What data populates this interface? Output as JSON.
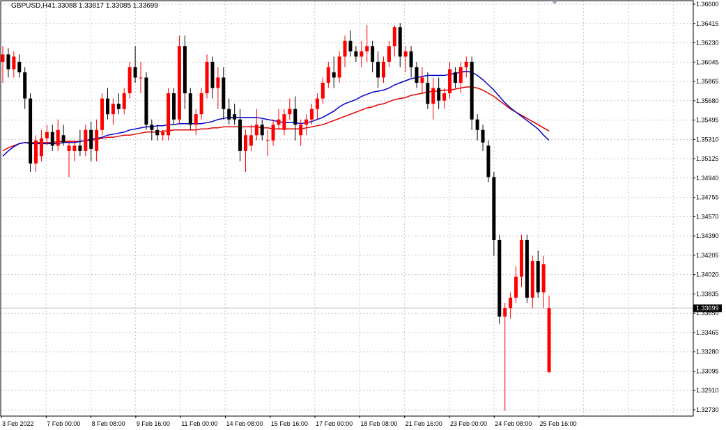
{
  "header": {
    "symbol": "GBPUSD,H4",
    "ohlc": "1.33088 1.33817 1.33085 1.33699"
  },
  "price_tag": "1.33699",
  "colors": {
    "bull": "#ff0000",
    "bear": "#000000",
    "ma_fast": "#0000cc",
    "ma_slow": "#e00000",
    "grid": "#c8c8c8",
    "frame": "#000000",
    "bid_line": "#c0c0c0"
  },
  "chart_data": {
    "type": "candlestick",
    "y_ticks": [
      "1.36600",
      "1.36415",
      "1.36230",
      "1.36045",
      "1.35865",
      "1.35680",
      "1.35495",
      "1.35310",
      "1.35125",
      "1.34940",
      "1.34755",
      "1.34570",
      "1.34390",
      "1.34205",
      "1.34020",
      "1.33835",
      "1.33650",
      "1.33465",
      "1.33280",
      "1.33095",
      "1.32910",
      "1.32730"
    ],
    "x_ticks": [
      "3 Feb 2022",
      "7 Feb 00:00",
      "8 Feb 08:00",
      "9 Feb 16:00",
      "11 Feb 00:00",
      "14 Feb 08:00",
      "15 Feb 16:00",
      "17 Feb 00:00",
      "18 Feb 08:00",
      "21 Feb 16:00",
      "23 Feb 00:00",
      "24 Feb 08:00",
      "25 Feb 16:00"
    ],
    "ylim": [
      1.3265,
      1.3662
    ],
    "candles": [
      [
        1.3605,
        1.362,
        1.3585,
        1.3612
      ],
      [
        1.3612,
        1.3618,
        1.359,
        1.3598
      ],
      [
        1.3598,
        1.3615,
        1.359,
        1.361
      ],
      [
        1.3605,
        1.3612,
        1.359,
        1.3595
      ],
      [
        1.3595,
        1.36,
        1.356,
        1.357
      ],
      [
        1.357,
        1.3575,
        1.35,
        1.3508
      ],
      [
        1.3508,
        1.3535,
        1.35,
        1.353
      ],
      [
        1.3515,
        1.354,
        1.351,
        1.3532
      ],
      [
        1.3532,
        1.3545,
        1.3525,
        1.3538
      ],
      [
        1.3538,
        1.3545,
        1.352,
        1.3525
      ],
      [
        1.3525,
        1.355,
        1.352,
        1.354
      ],
      [
        1.3535,
        1.3545,
        1.3525,
        1.3528
      ],
      [
        1.352,
        1.353,
        1.3495,
        1.3525
      ],
      [
        1.352,
        1.353,
        1.351,
        1.3525
      ],
      [
        1.3525,
        1.354,
        1.3515,
        1.352
      ],
      [
        1.352,
        1.3545,
        1.3515,
        1.354
      ],
      [
        1.354,
        1.3548,
        1.351,
        1.3522
      ],
      [
        1.352,
        1.355,
        1.351,
        1.354
      ],
      [
        1.354,
        1.3575,
        1.3535,
        1.357
      ],
      [
        1.357,
        1.358,
        1.355,
        1.3555
      ],
      [
        1.3555,
        1.357,
        1.3545,
        1.3565
      ],
      [
        1.3565,
        1.3575,
        1.3555,
        1.356
      ],
      [
        1.356,
        1.358,
        1.3555,
        1.3575
      ],
      [
        1.3575,
        1.3605,
        1.357,
        1.36
      ],
      [
        1.36,
        1.362,
        1.3585,
        1.359
      ],
      [
        1.359,
        1.3605,
        1.3575,
        1.359
      ],
      [
        1.359,
        1.3595,
        1.354,
        1.3545
      ],
      [
        1.3545,
        1.355,
        1.353,
        1.354
      ],
      [
        1.354,
        1.3545,
        1.353,
        1.3535
      ],
      [
        1.3535,
        1.354,
        1.353,
        1.3538
      ],
      [
        1.3535,
        1.358,
        1.353,
        1.3575
      ],
      [
        1.3575,
        1.358,
        1.3545,
        1.355
      ],
      [
        1.355,
        1.363,
        1.3545,
        1.362
      ],
      [
        1.362,
        1.363,
        1.356,
        1.3575
      ],
      [
        1.3575,
        1.358,
        1.354,
        1.3545
      ],
      [
        1.3545,
        1.356,
        1.3535,
        1.3555
      ],
      [
        1.3555,
        1.358,
        1.355,
        1.3575
      ],
      [
        1.3575,
        1.3612,
        1.357,
        1.3605
      ],
      [
        1.3605,
        1.361,
        1.357,
        1.358
      ],
      [
        1.358,
        1.36,
        1.356,
        1.359
      ],
      [
        1.359,
        1.36,
        1.355,
        1.356
      ],
      [
        1.356,
        1.357,
        1.3545,
        1.355
      ],
      [
        1.3555,
        1.3565,
        1.3545,
        1.355
      ],
      [
        1.355,
        1.356,
        1.351,
        1.352
      ],
      [
        1.352,
        1.354,
        1.35,
        1.3535
      ],
      [
        1.3525,
        1.3545,
        1.352,
        1.3535
      ],
      [
        1.3535,
        1.356,
        1.353,
        1.3545
      ],
      [
        1.3545,
        1.355,
        1.353,
        1.3535
      ],
      [
        1.353,
        1.354,
        1.3515,
        1.353
      ],
      [
        1.353,
        1.355,
        1.3525,
        1.3545
      ],
      [
        1.3545,
        1.356,
        1.354,
        1.355
      ],
      [
        1.354,
        1.356,
        1.3535,
        1.3555
      ],
      [
        1.3555,
        1.357,
        1.355,
        1.356
      ],
      [
        1.356,
        1.3572,
        1.353,
        1.3545
      ],
      [
        1.3535,
        1.355,
        1.3525,
        1.3545
      ],
      [
        1.3545,
        1.3555,
        1.3535,
        1.355
      ],
      [
        1.355,
        1.3565,
        1.3545,
        1.356
      ],
      [
        1.356,
        1.3575,
        1.355,
        1.357
      ],
      [
        1.357,
        1.359,
        1.3565,
        1.3585
      ],
      [
        1.3585,
        1.3605,
        1.358,
        1.36
      ],
      [
        1.3595,
        1.361,
        1.358,
        1.359
      ],
      [
        1.359,
        1.3615,
        1.3585,
        1.361
      ],
      [
        1.361,
        1.363,
        1.36,
        1.3625
      ],
      [
        1.3625,
        1.3635,
        1.361,
        1.3615
      ],
      [
        1.3615,
        1.362,
        1.3605,
        1.361
      ],
      [
        1.361,
        1.3625,
        1.36,
        1.3615
      ],
      [
        1.3615,
        1.364,
        1.3605,
        1.362
      ],
      [
        1.362,
        1.3625,
        1.3595,
        1.3605
      ],
      [
        1.3605,
        1.3615,
        1.358,
        1.359
      ],
      [
        1.359,
        1.361,
        1.3585,
        1.3605
      ],
      [
        1.3605,
        1.3625,
        1.36,
        1.362
      ],
      [
        1.362,
        1.364,
        1.361,
        1.3638
      ],
      [
        1.3638,
        1.3642,
        1.36,
        1.361
      ],
      [
        1.361,
        1.362,
        1.3595,
        1.3615
      ],
      [
        1.3615,
        1.362,
        1.359,
        1.36
      ],
      [
        1.36,
        1.3605,
        1.358,
        1.3585
      ],
      [
        1.3585,
        1.36,
        1.3575,
        1.359
      ],
      [
        1.3585,
        1.3595,
        1.356,
        1.3565
      ],
      [
        1.3565,
        1.359,
        1.355,
        1.358
      ],
      [
        1.358,
        1.359,
        1.356,
        1.3568
      ],
      [
        1.3568,
        1.358,
        1.356,
        1.3575
      ],
      [
        1.3575,
        1.3605,
        1.357,
        1.3598
      ],
      [
        1.3595,
        1.36,
        1.358,
        1.3585
      ],
      [
        1.3585,
        1.3605,
        1.3575,
        1.36
      ],
      [
        1.36,
        1.361,
        1.359,
        1.3605
      ],
      [
        1.3605,
        1.361,
        1.354,
        1.355
      ],
      [
        1.355,
        1.3555,
        1.353,
        1.354
      ],
      [
        1.354,
        1.3545,
        1.352,
        1.3528
      ],
      [
        1.3525,
        1.353,
        1.349,
        1.3495
      ],
      [
        1.3495,
        1.35,
        1.342,
        1.3435
      ],
      [
        1.3435,
        1.344,
        1.3355,
        1.3362
      ],
      [
        1.3362,
        1.3375,
        1.3272,
        1.337
      ],
      [
        1.337,
        1.3385,
        1.336,
        1.338
      ],
      [
        1.338,
        1.341,
        1.3375,
        1.34
      ],
      [
        1.34,
        1.344,
        1.339,
        1.3435
      ],
      [
        1.3435,
        1.344,
        1.3375,
        1.338
      ],
      [
        1.338,
        1.342,
        1.337,
        1.3415
      ],
      [
        1.3415,
        1.3425,
        1.338,
        1.3385
      ],
      [
        1.3385,
        1.342,
        1.337,
        1.3412
      ],
      [
        1.3309,
        1.3382,
        1.3308,
        1.337
      ]
    ],
    "ma_fast": [
      1.3515,
      1.352,
      1.3524,
      1.3527,
      1.3528,
      1.3527,
      1.3527,
      1.3527,
      1.3527,
      1.3527,
      1.3527,
      1.3528,
      1.3528,
      1.3528,
      1.3529,
      1.353,
      1.3531,
      1.3532,
      1.3533,
      1.3535,
      1.3536,
      1.3537,
      1.3538,
      1.354,
      1.3541,
      1.3542,
      1.3543,
      1.3543,
      1.3544,
      1.3544,
      1.3545,
      1.3545,
      1.3546,
      1.3546,
      1.3546,
      1.3546,
      1.3546,
      1.3547,
      1.3548,
      1.355,
      1.3551,
      1.3552,
      1.3552,
      1.3552,
      1.3552,
      1.3552,
      1.3552,
      1.3551,
      1.355,
      1.3549,
      1.3548,
      1.3547,
      1.3547,
      1.3547,
      1.3546,
      1.3547,
      1.3548,
      1.355,
      1.3552,
      1.3555,
      1.3558,
      1.3562,
      1.3565,
      1.3567,
      1.3569,
      1.3572,
      1.3574,
      1.3576,
      1.3577,
      1.3578,
      1.358,
      1.3583,
      1.3585,
      1.3587,
      1.3589,
      1.359,
      1.3591,
      1.3592,
      1.3592,
      1.3592,
      1.3592,
      1.3593,
      1.3594,
      1.3595,
      1.3596,
      1.3595,
      1.3592,
      1.3588,
      1.3583,
      1.3578,
      1.3572,
      1.3566,
      1.3561,
      1.3557,
      1.3553,
      1.3549,
      1.3545,
      1.3541,
      1.3535,
      1.353
    ],
    "ma_slow": [
      1.352,
      1.3523,
      1.3525,
      1.3527,
      1.3528,
      1.3528,
      1.3528,
      1.3528,
      1.3528,
      1.3528,
      1.3529,
      1.3529,
      1.3529,
      1.3529,
      1.3529,
      1.353,
      1.353,
      1.3531,
      1.3532,
      1.3533,
      1.3533,
      1.3534,
      1.3535,
      1.3535,
      1.3536,
      1.3537,
      1.3538,
      1.3538,
      1.3538,
      1.3539,
      1.3539,
      1.354,
      1.354,
      1.354,
      1.354,
      1.354,
      1.3541,
      1.3541,
      1.3542,
      1.3542,
      1.3543,
      1.3543,
      1.3543,
      1.3543,
      1.3543,
      1.3543,
      1.3543,
      1.3542,
      1.3542,
      1.3541,
      1.3541,
      1.3541,
      1.3541,
      1.3541,
      1.3541,
      1.3542,
      1.3543,
      1.3544,
      1.3545,
      1.3547,
      1.3549,
      1.3551,
      1.3553,
      1.3555,
      1.3557,
      1.3559,
      1.3561,
      1.3562,
      1.3564,
      1.3565,
      1.3567,
      1.3569,
      1.357,
      1.3571,
      1.3573,
      1.3574,
      1.3575,
      1.3576,
      1.3577,
      1.3577,
      1.3578,
      1.3578,
      1.3579,
      1.358,
      1.3581,
      1.3581,
      1.358,
      1.3578,
      1.3575,
      1.3572,
      1.3568,
      1.3564,
      1.356,
      1.3557,
      1.3554,
      1.3551,
      1.3548,
      1.3545,
      1.3542,
      1.3539
    ],
    "last_price": 1.33699
  }
}
